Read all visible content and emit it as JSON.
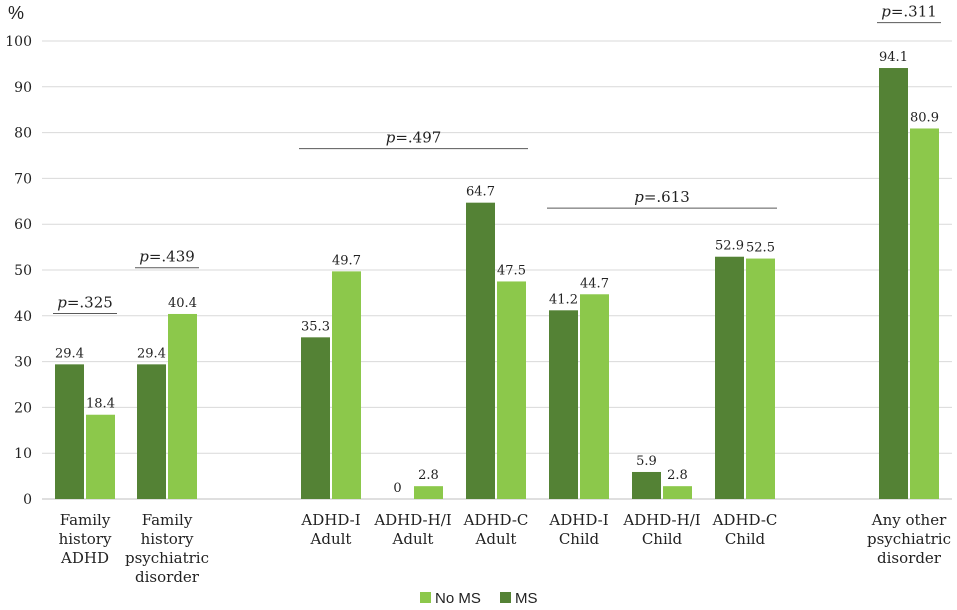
{
  "chart_data": {
    "type": "bar",
    "ylabel": "%",
    "ylim": [
      0,
      100
    ],
    "yticks": [
      0,
      10,
      20,
      30,
      40,
      50,
      60,
      70,
      80,
      90,
      100
    ],
    "grid": true,
    "series": [
      {
        "name": "MS",
        "color": "#548235"
      },
      {
        "name": "No MS",
        "color": "#8cc84b"
      }
    ],
    "legend_order": [
      "No MS",
      "MS"
    ],
    "legend_position": "bottom",
    "categories": [
      {
        "label": [
          "Family",
          "history",
          "ADHD"
        ],
        "values": [
          29.4,
          18.4
        ],
        "labels": [
          "29.4",
          "18.4"
        ]
      },
      {
        "label": [
          "Family",
          "history",
          "psychiatric",
          "disorder"
        ],
        "values": [
          29.4,
          40.4
        ],
        "labels": [
          "29.4",
          "40.4"
        ]
      },
      {
        "label": [
          "ADHD-I",
          "Adult"
        ],
        "values": [
          35.3,
          49.7
        ],
        "labels": [
          "35.3",
          "49.7"
        ]
      },
      {
        "label": [
          "ADHD-H/I",
          "Adult"
        ],
        "values": [
          0,
          2.8
        ],
        "labels": [
          "0",
          "2.8"
        ]
      },
      {
        "label": [
          "ADHD-C",
          "Adult"
        ],
        "values": [
          64.7,
          47.5
        ],
        "labels": [
          "64.7",
          "47.5"
        ]
      },
      {
        "label": [
          "ADHD-I",
          "Child"
        ],
        "values": [
          41.2,
          44.7
        ],
        "labels": [
          "41.2",
          "44.7"
        ]
      },
      {
        "label": [
          "ADHD-H/I",
          "Child"
        ],
        "values": [
          5.9,
          2.8
        ],
        "labels": [
          "5.9",
          "2.8"
        ]
      },
      {
        "label": [
          "ADHD-C",
          "Child"
        ],
        "values": [
          52.9,
          52.5
        ],
        "labels": [
          "52.9",
          "52.5"
        ]
      },
      {
        "label": [
          "Any other",
          "psychiatric",
          "disorder"
        ],
        "values": [
          94.1,
          80.9
        ],
        "labels": [
          "94.1",
          "80.9"
        ]
      }
    ],
    "annotations": [
      {
        "p": "p",
        "rest": "=.325",
        "from_category": 0,
        "to_category": 0,
        "level": 40.5
      },
      {
        "p": "p",
        "rest": "=.439",
        "from_category": 1,
        "to_category": 1,
        "level": 50.5
      },
      {
        "p": "p",
        "rest": "=.497",
        "from_category": 2,
        "to_category": 4,
        "level": 76.5
      },
      {
        "p": "p",
        "rest": "=.613",
        "from_category": 5,
        "to_category": 7,
        "level": 63.5
      },
      {
        "p": "p",
        "rest": "=.311",
        "from_category": 8,
        "to_category": 8,
        "level": 104
      }
    ]
  }
}
